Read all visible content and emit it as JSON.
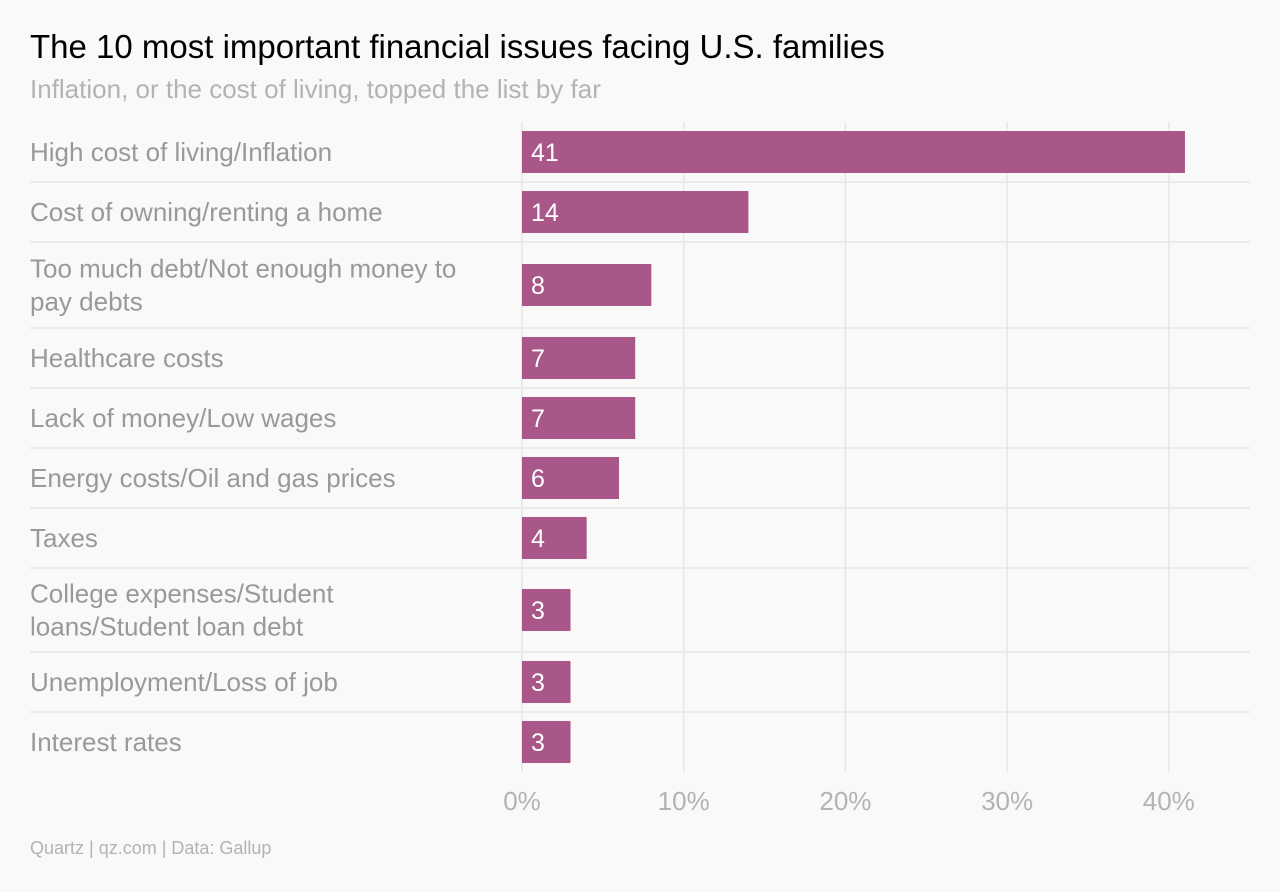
{
  "title": "The 10 most important financial issues facing U.S. families",
  "subtitle": "Inflation, or the cost of living, topped the list by far",
  "footer": "Quartz | qz.com | Data: Gallup",
  "colors": {
    "bar": "#a85788",
    "grid": "#e6e6e6",
    "background": "#f9f9f9"
  },
  "chart_data": {
    "type": "bar",
    "orientation": "horizontal",
    "categories": [
      [
        "High cost of living/Inflation"
      ],
      [
        "Cost of owning/renting a home"
      ],
      [
        "Too much debt/Not enough money to",
        "pay debts"
      ],
      [
        "Healthcare costs"
      ],
      [
        "Lack of money/Low wages"
      ],
      [
        "Energy costs/Oil and gas prices"
      ],
      [
        "Taxes"
      ],
      [
        "College expenses/Student",
        "loans/Student loan debt"
      ],
      [
        "Unemployment/Loss of job"
      ],
      [
        "Interest rates"
      ]
    ],
    "values": [
      41,
      14,
      8,
      7,
      7,
      6,
      4,
      3,
      3,
      3
    ],
    "xlim": [
      0,
      45
    ],
    "xticks": [
      0,
      10,
      20,
      30,
      40
    ],
    "tick_labels": [
      "0%",
      "10%",
      "20%",
      "30%",
      "40%"
    ],
    "grid": true,
    "data_labels": true
  }
}
